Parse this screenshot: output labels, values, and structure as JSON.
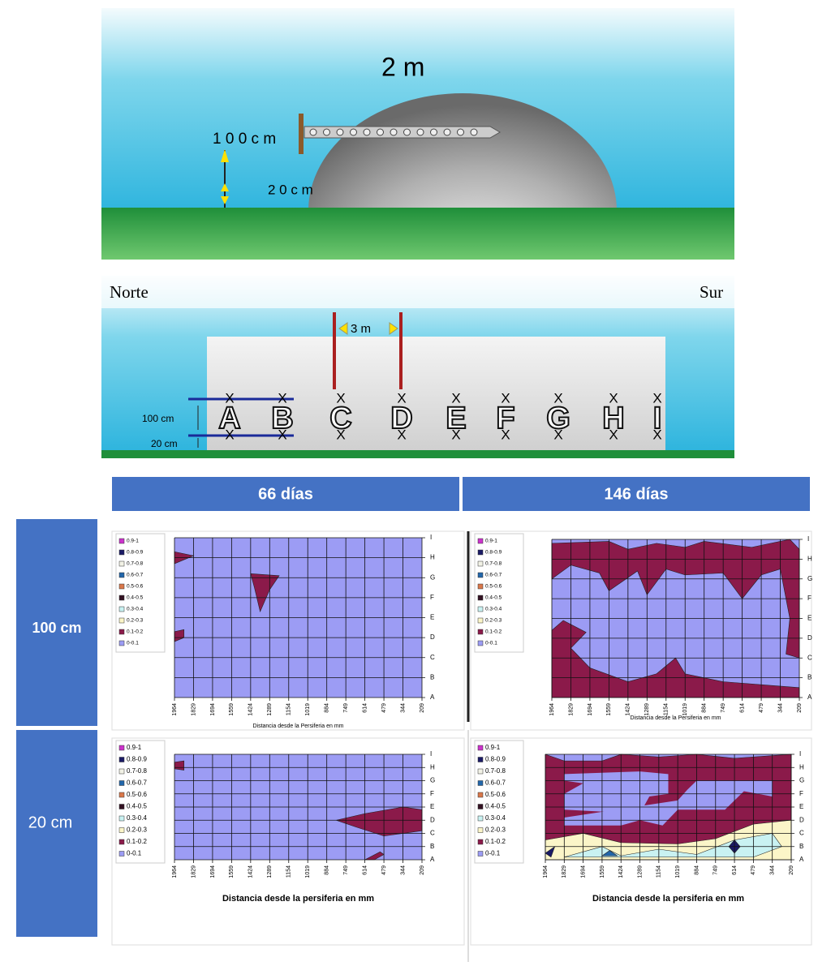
{
  "diagram_top": {
    "height_label": "2 m",
    "upper_label": "1 0 0 c m",
    "lower_label": "2 0 c m"
  },
  "diagram_side": {
    "north": "Norte",
    "south": "Sur",
    "spacing": "3 m",
    "upper_label": "100 cm",
    "lower_label": "20 cm",
    "positions": [
      "A",
      "B",
      "C",
      "D",
      "E",
      "F",
      "G",
      "H",
      "I"
    ],
    "marker": "X"
  },
  "table": {
    "columns": [
      "66 días",
      "146 días"
    ],
    "rows": [
      "100 cm",
      "20 cm"
    ]
  },
  "contour": {
    "legend": [
      {
        "label": "0.9-1",
        "color": "#cc33cc"
      },
      {
        "label": "0.8-0.9",
        "color": "#1a1a66"
      },
      {
        "label": "0.7-0.8",
        "color": "#f2f2e6"
      },
      {
        "label": "0.6-0.7",
        "color": "#2266aa"
      },
      {
        "label": "0.5-0.6",
        "color": "#d9774a"
      },
      {
        "label": "0.4-0.5",
        "color": "#331122"
      },
      {
        "label": "0.3-0.4",
        "color": "#c9f2f2"
      },
      {
        "label": "0.2-0.3",
        "color": "#fbf5c8"
      },
      {
        "label": "0.1-0.2",
        "color": "#8b1a4a"
      },
      {
        "label": "0-0.1",
        "color": "#9c9cf4"
      }
    ],
    "x_ticks": [
      1964,
      1829,
      1694,
      1559,
      1424,
      1289,
      1154,
      1019,
      884,
      749,
      614,
      479,
      344,
      209
    ],
    "y_ticks": [
      "A",
      "B",
      "C",
      "D",
      "E",
      "F",
      "G",
      "H",
      "I"
    ]
  },
  "panels": [
    {
      "x_label": "Distancia desde la Persiferia en mm"
    },
    {
      "x_label": "Distancia desde la Persiferia en mm"
    },
    {
      "x_label": "Distancia desde la persiferia en mm"
    },
    {
      "x_label": "Distancia desde la persiferia en mm"
    }
  ]
}
